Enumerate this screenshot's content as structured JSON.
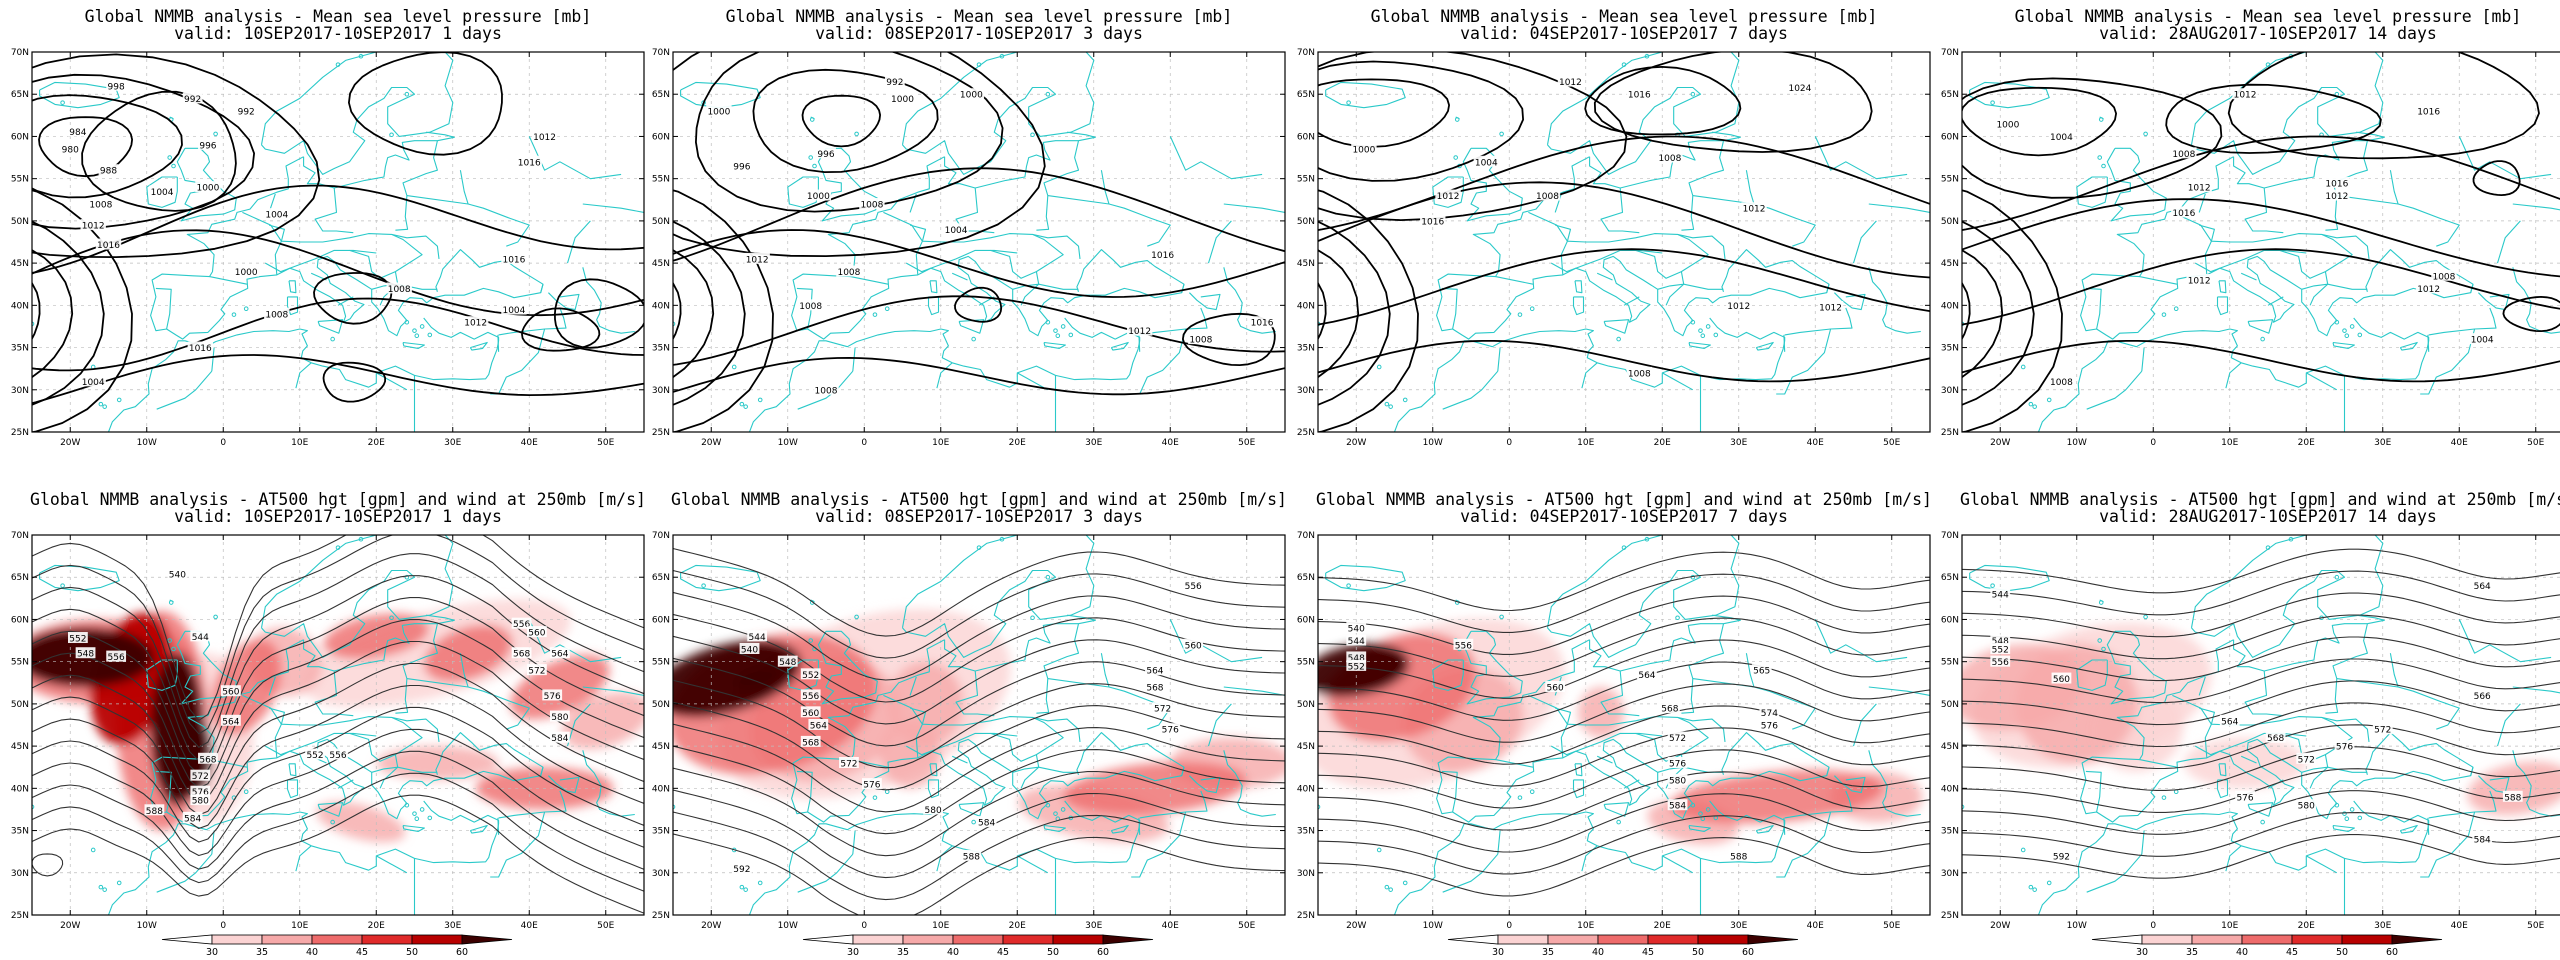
{
  "figure": {
    "colors": {
      "coast": "#2ac9c9",
      "isobar": "#000000",
      "height_contour": "#333333",
      "grid": "#bdbdbd",
      "wind_scale": [
        "#ffffff",
        "#fbd3d3",
        "#f6a9a9",
        "#ee6b6b",
        "#e02a2a",
        "#b80000",
        "#3c0000"
      ]
    },
    "axes": {
      "y_ticks": [
        "70N",
        "65N",
        "60N",
        "55N",
        "50N",
        "45N",
        "40N",
        "35N",
        "30N",
        "25N"
      ],
      "x_ticks": [
        "20W",
        "10W",
        "0",
        "10E",
        "20E",
        "30E",
        "40E",
        "50E"
      ]
    },
    "colorbar": {
      "labels": [
        "30",
        "35",
        "40",
        "45",
        "50",
        "60"
      ],
      "units": "m/s"
    },
    "panels": [
      {
        "id": "mslp-1d",
        "title_line1": "Global NMMB analysis - Mean sea level pressure [mb]",
        "title_line2": "valid: 10SEP2017-10SEP2017  1 days",
        "field": "mslp",
        "contour_labels": [
          "998",
          "992",
          "984",
          "980",
          "988",
          "996",
          "992",
          "1000",
          "1008",
          "1012",
          "1016",
          "1004",
          "1004",
          "1000",
          "1008",
          "1012",
          "1016",
          "1016",
          "1008",
          "1004",
          "1012",
          "1016",
          "1004"
        ]
      },
      {
        "id": "mslp-3d",
        "title_line1": "Global NMMB analysis - Mean sea level pressure [mb]",
        "title_line2": "valid: 08SEP2017-10SEP2017  3 days",
        "field": "mslp",
        "contour_labels": [
          "1000",
          "996",
          "1000",
          "992",
          "1000",
          "1008",
          "996",
          "1000",
          "1004",
          "1012",
          "1008",
          "1016",
          "1008",
          "1012",
          "1008",
          "1016",
          "1008"
        ]
      },
      {
        "id": "mslp-7d",
        "title_line1": "Global NMMB analysis - Mean sea level pressure [mb]",
        "title_line2": "valid: 04SEP2017-10SEP2017  7 days",
        "field": "mslp",
        "contour_labels": [
          "1024",
          "1016",
          "1012",
          "1008",
          "1000",
          "1004",
          "1012",
          "1016",
          "1008",
          "1012",
          "1012",
          "1008",
          "1012"
        ]
      },
      {
        "id": "mslp-14d",
        "title_line1": "Global NMMB analysis - Mean sea level pressure [mb]",
        "title_line2": "valid: 28AUG2017-10SEP2017  14 days",
        "field": "mslp",
        "contour_labels": [
          "1012",
          "1016",
          "1000",
          "1004",
          "1008",
          "1012",
          "1012",
          "1016",
          "1016",
          "1012",
          "1008",
          "1012",
          "1004",
          "1008"
        ]
      },
      {
        "id": "z500-1d",
        "title_line1": "Global NMMB analysis - AT500 hgt [gpm] and wind at 250mb [m/s]",
        "title_line2": "valid: 10SEP2017-10SEP2017  1 days",
        "field": "z500",
        "contour_labels": [
          "540",
          "544",
          "548",
          "552",
          "556",
          "560",
          "564",
          "568",
          "572",
          "576",
          "580",
          "584",
          "588",
          "556",
          "560",
          "564",
          "568",
          "572",
          "576",
          "580",
          "584",
          "552",
          "556"
        ]
      },
      {
        "id": "z500-3d",
        "title_line1": "Global NMMB analysis - AT500 hgt [gpm] and wind at 250mb [m/s]",
        "title_line2": "valid: 08SEP2017-10SEP2017  3 days",
        "field": "z500",
        "contour_labels": [
          "540",
          "544",
          "548",
          "552",
          "556",
          "560",
          "564",
          "568",
          "572",
          "576",
          "580",
          "584",
          "588",
          "592",
          "556",
          "560",
          "564",
          "568",
          "572",
          "576"
        ]
      },
      {
        "id": "z500-7d",
        "title_line1": "Global NMMB analysis - AT500 hgt [gpm] and wind at 250mb [m/s]",
        "title_line2": "valid: 04SEP2017-10SEP2017  7 days",
        "field": "z500",
        "contour_labels": [
          "540",
          "544",
          "548",
          "552",
          "556",
          "560",
          "564",
          "568",
          "572",
          "576",
          "580",
          "584",
          "588",
          "565",
          "574",
          "576"
        ]
      },
      {
        "id": "z500-14d",
        "title_line1": "Global NMMB analysis - AT500 hgt [gpm] and wind at 250mb [m/s]",
        "title_line2": "valid: 28AUG2017-10SEP2017  14 days",
        "field": "z500",
        "contour_labels": [
          "544",
          "548",
          "552",
          "556",
          "560",
          "564",
          "568",
          "572",
          "576",
          "580",
          "584",
          "588",
          "592",
          "564",
          "566",
          "572",
          "576"
        ]
      }
    ]
  }
}
